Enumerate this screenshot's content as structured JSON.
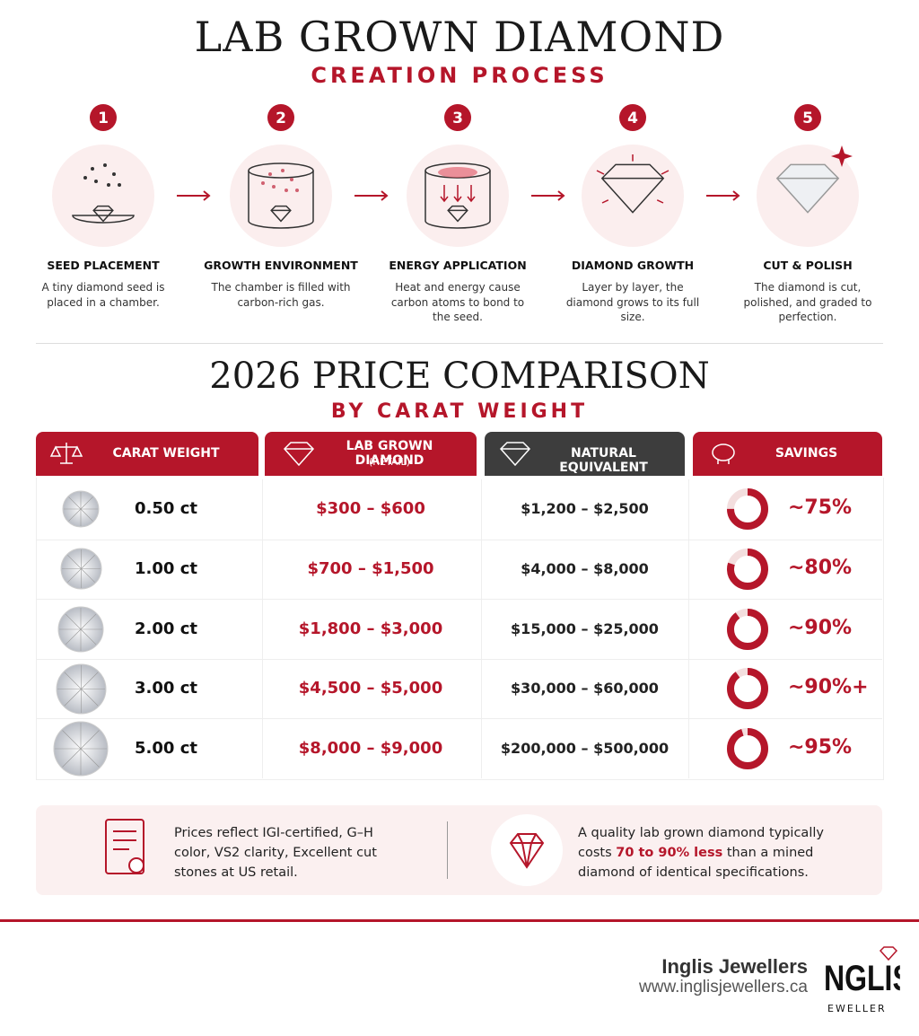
{
  "header": {
    "title": "LAB GROWN DIAMOND",
    "subtitle": "CREATION PROCESS"
  },
  "steps": [
    {
      "number": "1",
      "title": "SEED PLACEMENT",
      "description": "A tiny diamond seed is placed in a chamber."
    },
    {
      "number": "2",
      "title": "GROWTH ENVIRONMENT",
      "description": "The chamber is filled with carbon-rich gas."
    },
    {
      "number": "3",
      "title": "ENERGY APPLICATION",
      "description": "Heat and energy cause carbon atoms to bond to the seed."
    },
    {
      "number": "4",
      "title": "DIAMOND GROWTH",
      "description": "Layer by layer, the diamond grows to its full size."
    },
    {
      "number": "5",
      "title": "CUT & POLISH",
      "description": "The diamond is cut, polished, and graded to perfection."
    }
  ],
  "price_section": {
    "title": "2026 PRICE COMPARISON",
    "subtitle": "BY CARAT WEIGHT"
  },
  "table": {
    "columns": [
      {
        "label": "CARAT WEIGHT"
      },
      {
        "label": "LAB GROWN DIAMOND",
        "sublabel": "(RETAIL)"
      },
      {
        "label": "NATURAL EQUIVALENT"
      },
      {
        "label": "SAVINGS"
      }
    ],
    "rows": [
      {
        "carat": "0.50 ct",
        "lab": "$300 – $600",
        "natural": "$1,200 – $2,500",
        "savings": {
          "value": 75,
          "label": "~75%"
        }
      },
      {
        "carat": "1.00 ct",
        "lab": "$700 – $1,500",
        "natural": "$4,000 – $8,000",
        "savings": {
          "value": 80,
          "label": "~80%"
        }
      },
      {
        "carat": "2.00 ct",
        "lab": "$1,800 – $3,000",
        "natural": "$15,000 – $25,000",
        "savings": {
          "value": 90,
          "label": "~90%"
        }
      },
      {
        "carat": "3.00 ct",
        "lab": "$4,500 – $5,000",
        "natural": "$30,000 – $60,000",
        "savings": {
          "value": 90,
          "label": "~90%+"
        }
      },
      {
        "carat": "5.00 ct",
        "lab": "$8,000 – $9,000",
        "natural": "$200,000 – $500,000",
        "savings": {
          "value": 95,
          "label": "~95%"
        }
      }
    ]
  },
  "notes": {
    "left": "Prices reflect IGI-certified, G–H color, VS2 clarity, Excellent cut stones at US retail.",
    "right": {
      "before": "A quality lab grown diamond typically costs",
      "highlight": "70 to 90% less",
      "after": "than a mined diamond of identical specifications."
    }
  },
  "footer": {
    "name": "Inglis Jewellers",
    "url": "www.inglisjewellers.ca",
    "logo_text": "NGLIS",
    "logo_sub": "EWELLER"
  }
}
